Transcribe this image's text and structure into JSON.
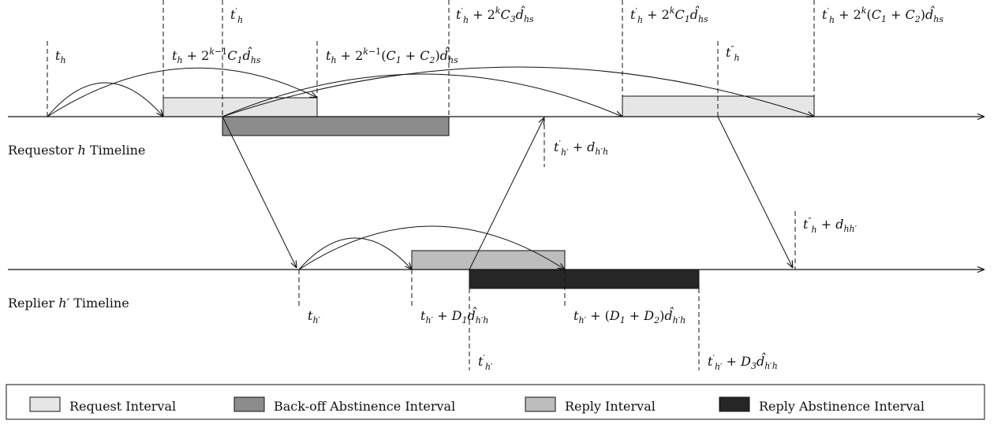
{
  "timelines": {
    "requestor": "Requestor h Timeline",
    "replier": "Replier h′ Timeline"
  },
  "labels": {
    "t_h": "t_h",
    "t_h_plus_c1": "t_h + 2^{k−1}C_1 d̂_{hs}",
    "t_h_plus_c1c2": "t_h + 2^{k−1}(C_1 + C_2)d̂_{hs}",
    "tp_h": "t′_h",
    "tp_h_plus_c3": "t′_h + 2^k C_3 d̂_{hs}",
    "tp_h_plus_c1": "t′_h + 2^k C_1 d̂_{hs}",
    "tpp_h": "t″_h",
    "tp_h_plus_c1c2": "t′_h + 2^k(C_1 + C_2)d̂_{hs}",
    "tp_hp_plus_d": "t′_{h′} + d_{h′h}",
    "tpp_h_plus_d": "t″_h + d_{hh′}",
    "t_hp": "t_{h′}",
    "t_hp_plus_d1": "t_{h′} + D_1 d̂_{h′h}",
    "t_hp_plus_d1d2": "t_{h′} + (D_1 + D_2)d̂_{h′h}",
    "tp_hp": "t′_{h′}",
    "tp_hp_plus_d3": "t′_{h′} + D_3 d̂_{h′h}"
  },
  "legend": [
    {
      "label": "Request Interval",
      "color": "#e6e6e6"
    },
    {
      "label": "Back-off Abstinence Interval",
      "color": "#8c8c8c"
    },
    {
      "label": "Reply Interval",
      "color": "#bdbdbd"
    },
    {
      "label": "Reply Abstinence Interval",
      "color": "#262626"
    }
  ]
}
